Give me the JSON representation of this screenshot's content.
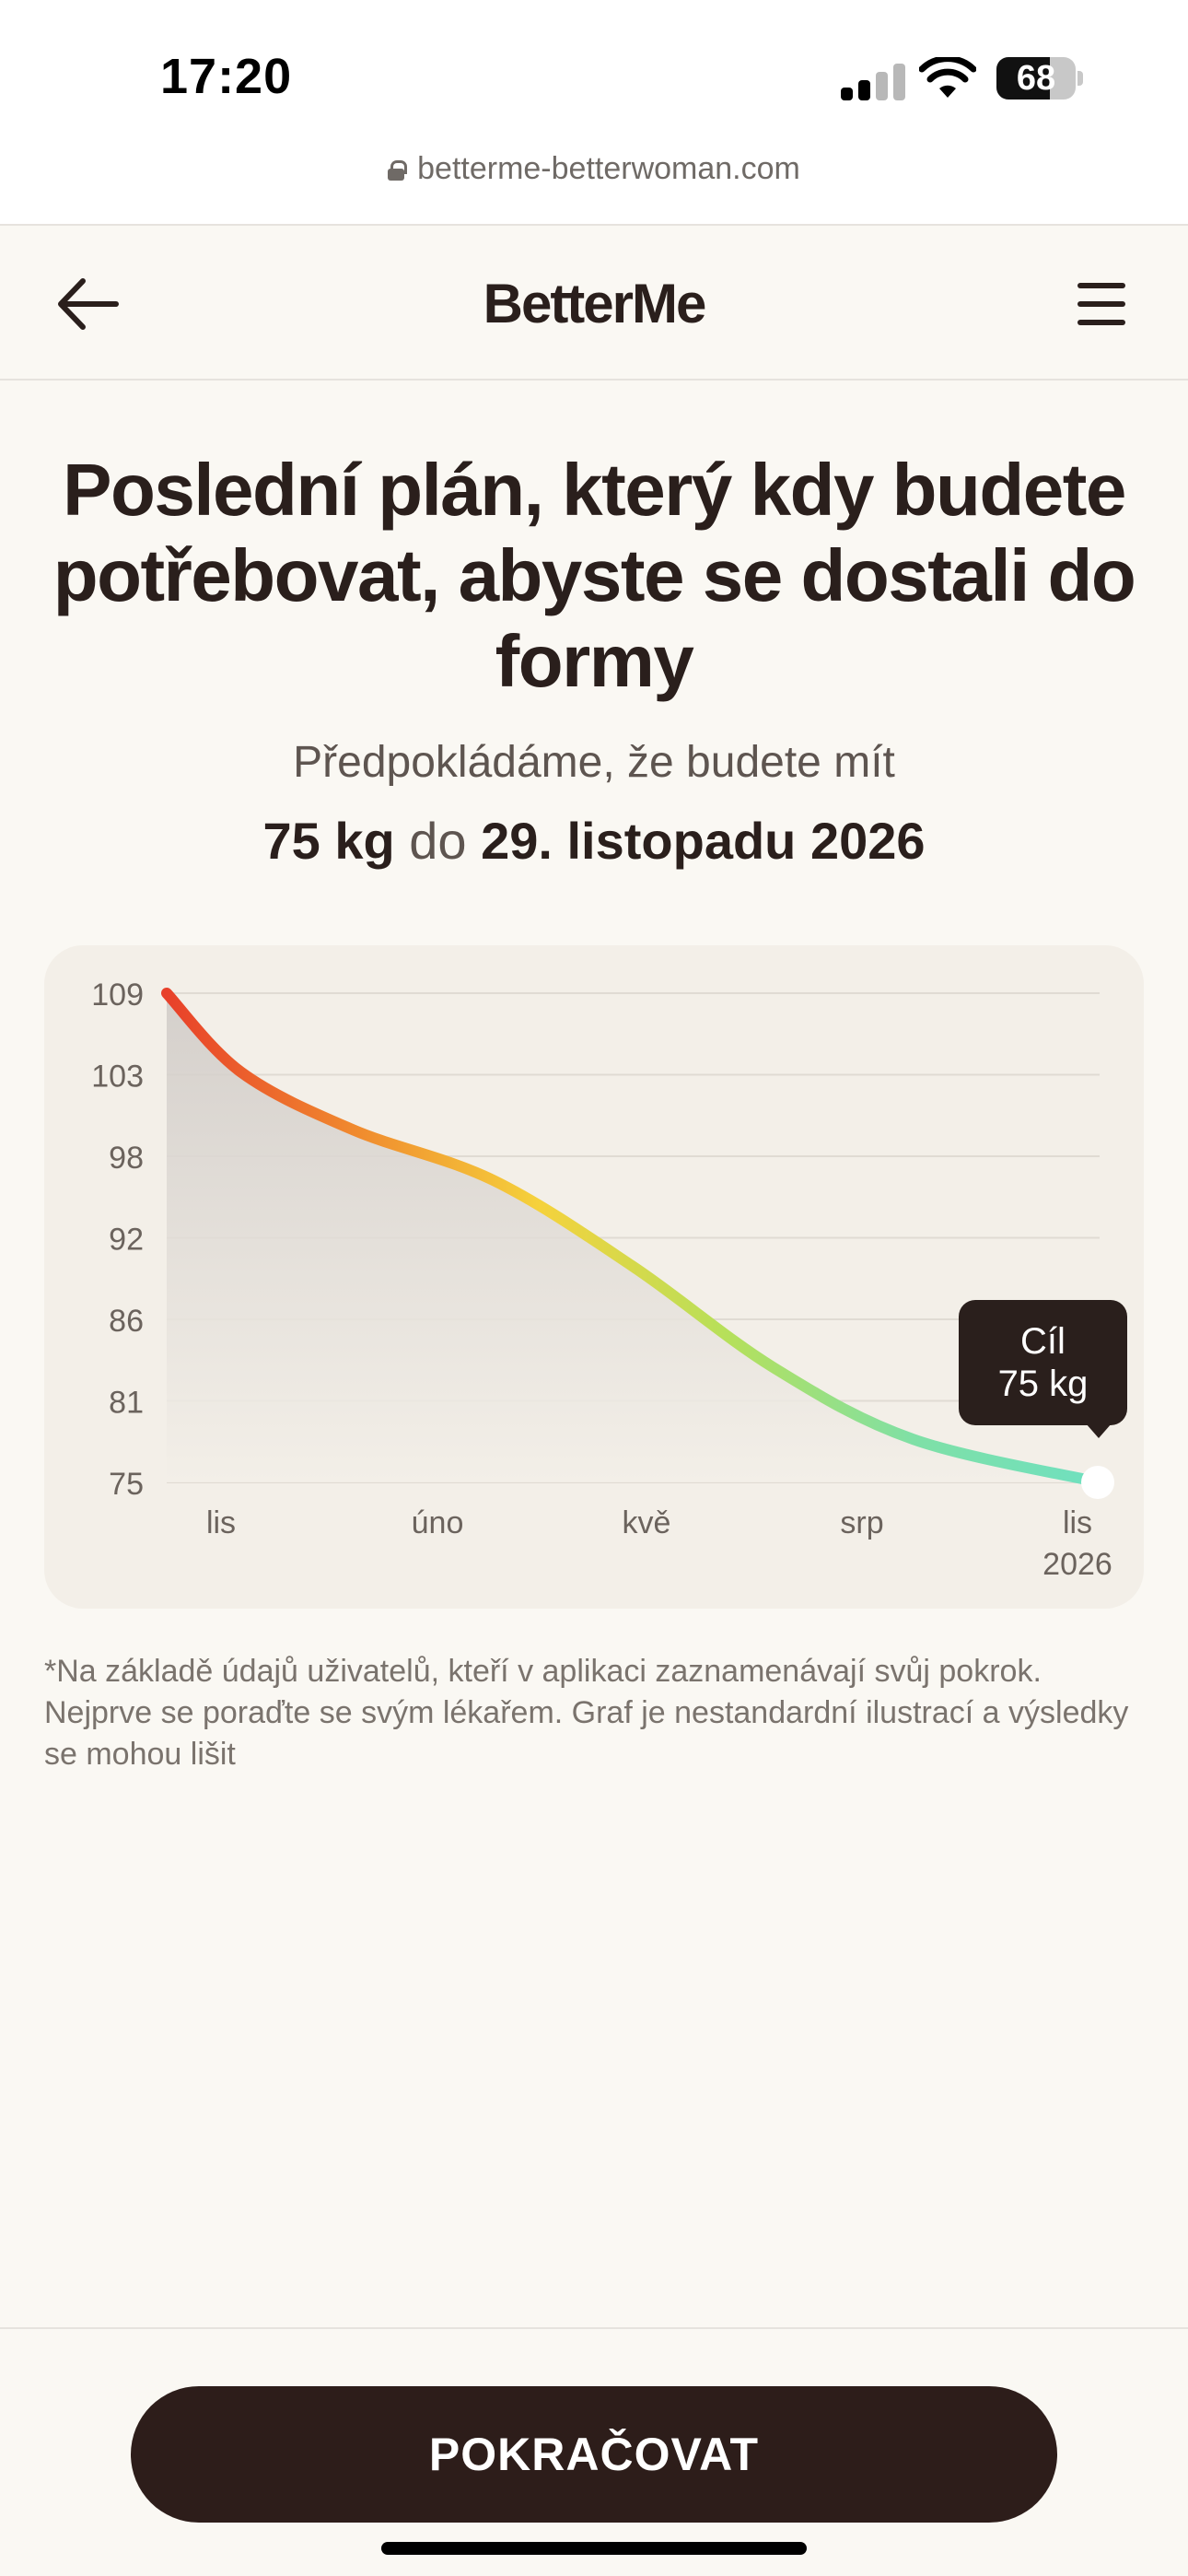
{
  "status_bar": {
    "time": "17:20",
    "battery": "68",
    "signal_bars_active": 2,
    "signal_bars_total": 4
  },
  "browser": {
    "url": "betterme-betterwoman.com"
  },
  "header": {
    "logo": "BetterMe"
  },
  "main": {
    "title": "Poslední plán, který kdy budete potřebovat, abyste se dostali do formy",
    "subtitle": "Předpokládáme, že budete mít",
    "goal_weight": "75 kg",
    "connector": "do",
    "goal_date": "29. listopadu 2026",
    "disclaimer": "*Na základě údajů uživatelů, kteří v aplikaci zaznamenávají svůj pokrok. Nejprve se poraďte se svým lékařem. Graf je nestandardní ilustrací a výsledky se mohou lišit"
  },
  "chart_data": {
    "type": "area",
    "y_ticks": [
      109,
      103,
      98,
      92,
      86,
      81,
      75
    ],
    "ylim": [
      75,
      109
    ],
    "x_ticks": [
      "lis",
      "úno",
      "kvě",
      "srp",
      "lis"
    ],
    "x_tick_sublabels": [
      "",
      "",
      "",
      "",
      "2026"
    ],
    "series": [
      {
        "x": [
          0,
          0.08,
          0.2,
          0.35,
          0.5,
          0.65,
          0.8,
          1.0
        ],
        "values": [
          109,
          103.5,
          99.5,
          96,
          90,
          83,
          78,
          75
        ]
      }
    ],
    "gradient_colors": [
      "#e8402a",
      "#f0892e",
      "#f5d23c",
      "#b6e05a",
      "#7fe0a6",
      "#6fe0c0"
    ],
    "tooltip": {
      "title": "Cíl",
      "value": "75 kg"
    },
    "grid": true
  },
  "footer": {
    "continue_label": "POKRAČOVAT"
  }
}
